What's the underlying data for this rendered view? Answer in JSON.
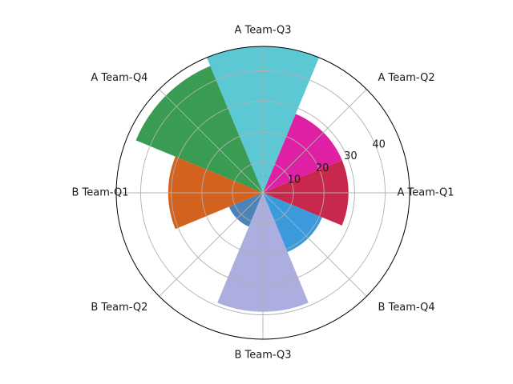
{
  "chart_data": {
    "type": "bar",
    "subtype": "polar",
    "categories": [
      "A Team-Q1",
      "A Team-Q2",
      "A Team-Q3",
      "A Team-Q4",
      "B Team-Q1",
      "B Team-Q2",
      "B Team-Q3",
      "B Team-Q4"
    ],
    "values": [
      28,
      28,
      48,
      45,
      31,
      12,
      39,
      21
    ],
    "colors": [
      "#c8284b",
      "#e020a4",
      "#5bc8d4",
      "#3a9c52",
      "#d4621f",
      "#4a84b8",
      "#adaee0",
      "#3a9adb"
    ],
    "radial_ticks": [
      10,
      20,
      30,
      40
    ],
    "rlim": [
      0,
      48
    ],
    "angle_start": "east",
    "direction": "counter-clockwise",
    "grid": true,
    "title": "",
    "xlabel": "",
    "ylabel": ""
  }
}
